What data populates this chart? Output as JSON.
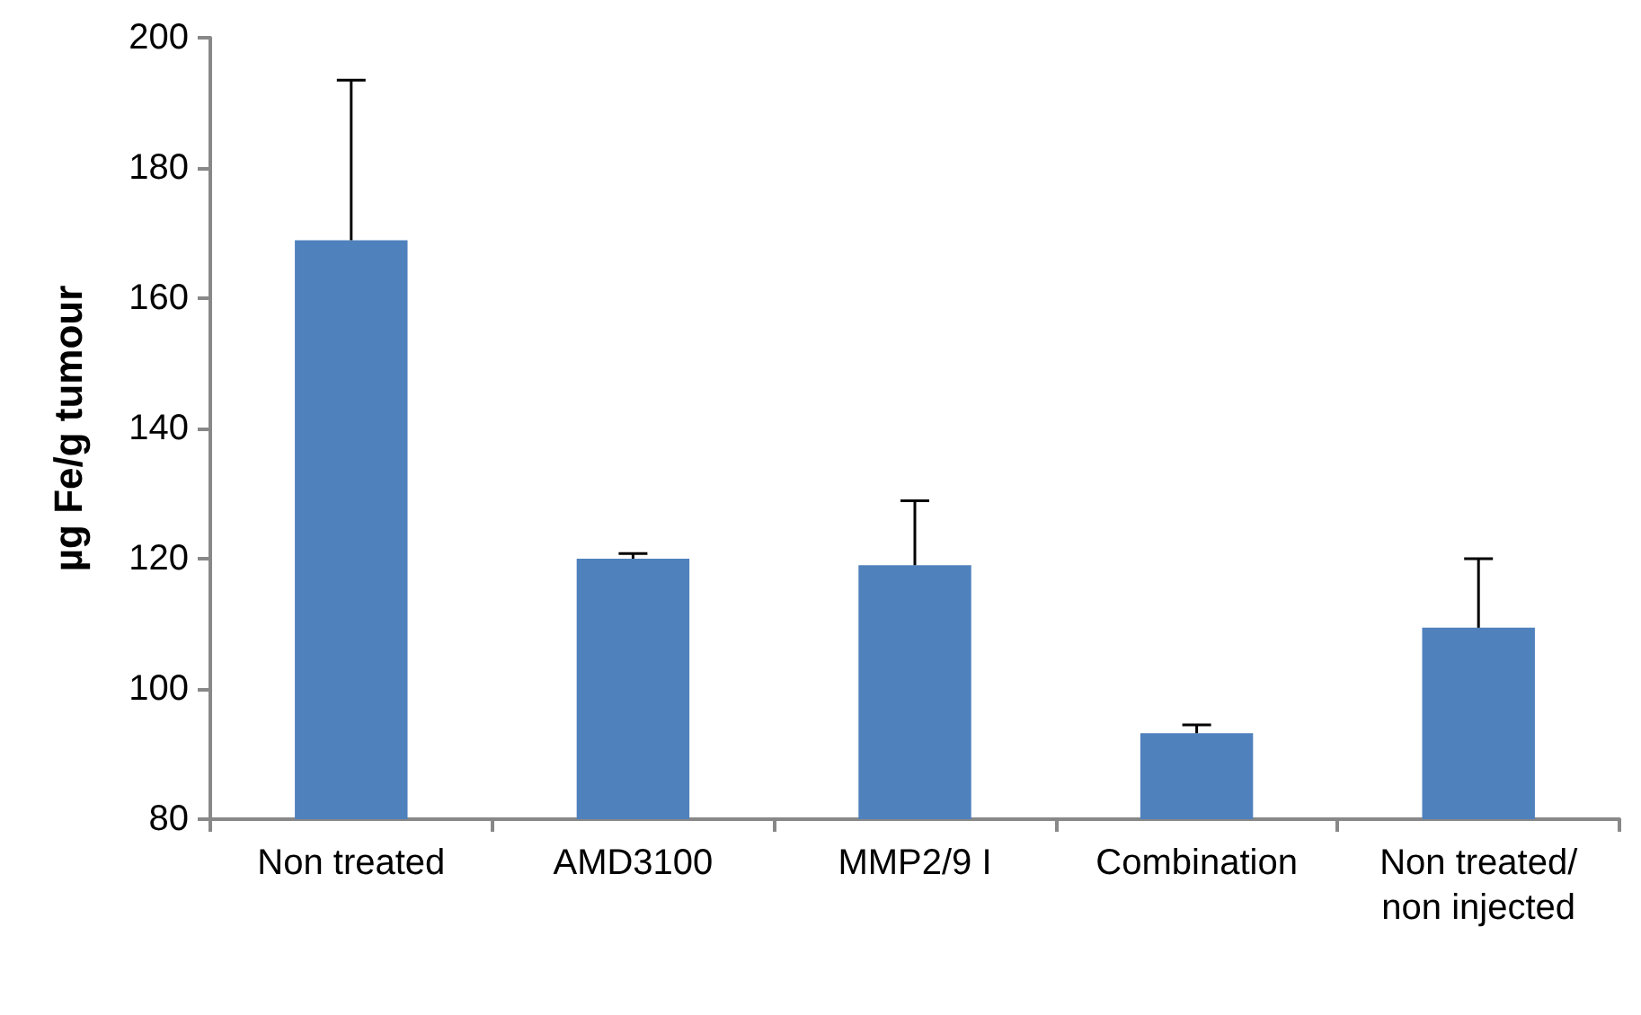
{
  "chart_data": {
    "type": "bar",
    "ylabel": "µg Fe/g tumour",
    "categories": [
      "Non treated",
      "AMD3100",
      "MMP2/9 I",
      "Combination",
      "Non treated/non injected"
    ],
    "values": [
      168.9,
      120.0,
      119.0,
      93.2,
      109.4
    ],
    "errors": [
      [
        168.9,
        193.5
      ],
      [
        120.0,
        120.8
      ],
      [
        119.0,
        128.9
      ],
      [
        93.2,
        94.5
      ],
      [
        109.4,
        120.0
      ]
    ],
    "color": "#4f81bd",
    "ylim": [
      80,
      200
    ],
    "yticks": [
      80,
      100,
      120,
      140,
      160,
      180,
      200
    ],
    "grid": false
  }
}
